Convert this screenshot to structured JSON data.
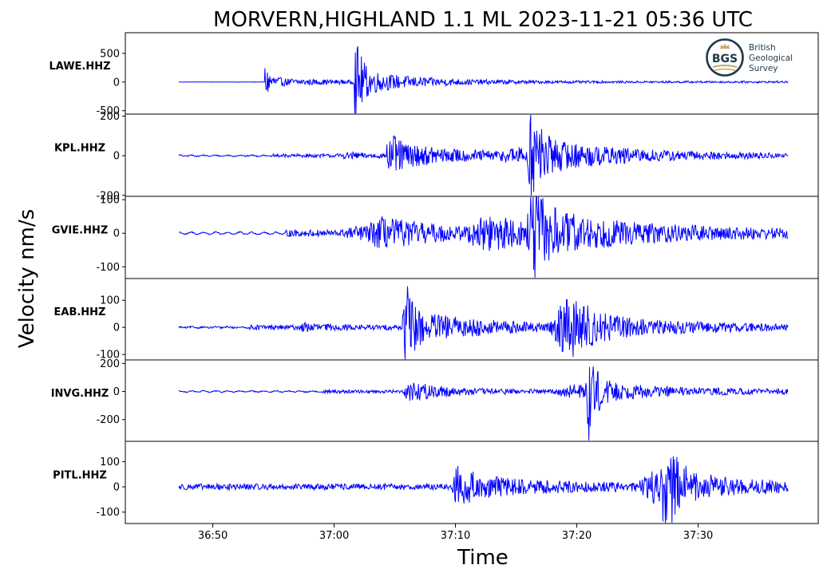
{
  "figure": {
    "title": "MORVERN,HIGHLAND 1.1 ML   2023-11-21 05:36 UTC",
    "ylabel": "Velocity nm/s",
    "xlabel": "Time",
    "time_ticks": [
      "36:50",
      "37:00",
      "37:10",
      "37:20",
      "37:30"
    ]
  },
  "logo": {
    "text_lines": [
      "British",
      "Geological",
      "Survey"
    ],
    "badge": "BGS"
  },
  "colors": {
    "trace": "#0000ff",
    "axes": "#000000",
    "logo_dark": "#1c3a4a",
    "logo_gold": "#c9a86a"
  },
  "chart_data": [
    {
      "type": "line",
      "station": "LAWE.HHZ",
      "ylim": [
        -560,
        860
      ],
      "yticks": [
        500,
        0,
        -500
      ],
      "ytick_labels": [
        "500",
        "0",
        "-500"
      ],
      "noise": 3,
      "bg_noise": 14,
      "bg_start": 9.3,
      "bursts": [
        {
          "t": 9.3,
          "amp": 300,
          "decay": 0.4,
          "rise": 0.05
        },
        {
          "t": 9.6,
          "amp": 60,
          "decay": 6,
          "rise": 0.3
        },
        {
          "t": 16.7,
          "amp": 760,
          "decay": 0.5,
          "rise": 0.05
        },
        {
          "t": 17.0,
          "amp": 180,
          "decay": 5,
          "rise": 0.3
        }
      ]
    },
    {
      "type": "line",
      "station": "KPL.HHZ",
      "ylim": [
        -205,
        210
      ],
      "yticks": [
        200,
        0,
        -200
      ],
      "ytick_labels": [
        "200",
        "0",
        "-200"
      ],
      "noise": 3,
      "bg_noise": 6,
      "bg_start": 10,
      "wave": 2.5,
      "bursts": [
        {
          "t": 16.5,
          "amp": 10,
          "decay": 2,
          "rise": 1.5
        },
        {
          "t": 19.4,
          "amp": 110,
          "decay": 0.6,
          "rise": 0.1
        },
        {
          "t": 19.9,
          "amp": 55,
          "decay": 7,
          "rise": 0.5
        },
        {
          "t": 30.2,
          "amp": 25,
          "decay": 4,
          "rise": 2
        },
        {
          "t": 31.2,
          "amp": 190,
          "decay": 0.7,
          "rise": 0.3
        },
        {
          "t": 31.8,
          "amp": 60,
          "decay": 8,
          "rise": 1
        }
      ]
    },
    {
      "type": "line",
      "station": "GVIE.HHZ",
      "ylim": [
        -135,
        110
      ],
      "yticks": [
        100,
        0,
        -100
      ],
      "ytick_labels": [
        "100",
        "0",
        "-100"
      ],
      "noise": 2,
      "bg_noise": 8,
      "bg_start": 11,
      "wave": 3,
      "bursts": [
        {
          "t": 17.0,
          "amp": 14,
          "decay": 3,
          "rise": 1.5
        },
        {
          "t": 18.8,
          "amp": 35,
          "decay": 6,
          "rise": 1.2
        },
        {
          "t": 28.0,
          "amp": 45,
          "decay": 3,
          "rise": 2.5
        },
        {
          "t": 31.3,
          "amp": 120,
          "decay": 0.8,
          "rise": 0.4
        },
        {
          "t": 31.8,
          "amp": 55,
          "decay": 9,
          "rise": 1.2
        }
      ]
    },
    {
      "type": "line",
      "station": "EAB.HHZ",
      "ylim": [
        -120,
        180
      ],
      "yticks": [
        100,
        0,
        -100
      ],
      "ytick_labels": [
        "100",
        "0",
        "-100"
      ],
      "noise": 3,
      "bg_noise": 6,
      "bg_start": 8,
      "wave": 1.5,
      "bursts": [
        {
          "t": 12.5,
          "amp": 10,
          "decay": 2,
          "rise": 0.5
        },
        {
          "t": 20.7,
          "amp": 170,
          "decay": 0.5,
          "rise": 0.08
        },
        {
          "t": 21.0,
          "amp": 60,
          "decay": 6,
          "rise": 0.4
        },
        {
          "t": 34.2,
          "amp": 95,
          "decay": 2,
          "rise": 1.5
        },
        {
          "t": 34.5,
          "amp": 30,
          "decay": 10,
          "rise": 1
        }
      ]
    },
    {
      "type": "line",
      "station": "INVG.HHZ",
      "ylim": [
        -355,
        225
      ],
      "yticks": [
        200,
        0,
        -200
      ],
      "ytick_labels": [
        "200",
        "0",
        "-200"
      ],
      "noise": 4,
      "bg_noise": 8,
      "bg_start": 14,
      "wave": 4,
      "bursts": [
        {
          "t": 21.0,
          "amp": 60,
          "decay": 2,
          "rise": 0.3
        },
        {
          "t": 21.8,
          "amp": 22,
          "decay": 6,
          "rise": 0.6
        },
        {
          "t": 35.0,
          "amp": 45,
          "decay": 2,
          "rise": 2
        },
        {
          "t": 36.0,
          "amp": 330,
          "decay": 0.5,
          "rise": 0.3
        },
        {
          "t": 36.6,
          "amp": 50,
          "decay": 8,
          "rise": 1
        }
      ]
    },
    {
      "type": "line",
      "station": "PITL.HHZ",
      "ylim": [
        -145,
        180
      ],
      "yticks": [
        100,
        0,
        -100
      ],
      "ytick_labels": [
        "100",
        "0",
        "-100"
      ],
      "noise": 4,
      "bg_noise": 8,
      "bg_start": 1,
      "wave": 3,
      "bursts": [
        {
          "t": 25.0,
          "amp": 65,
          "decay": 1.5,
          "rise": 0.3
        },
        {
          "t": 25.5,
          "amp": 28,
          "decay": 10,
          "rise": 0.6
        },
        {
          "t": 41.5,
          "amp": 55,
          "decay": 2,
          "rise": 1.5
        },
        {
          "t": 42.3,
          "amp": 155,
          "decay": 0.8,
          "rise": 0.4
        },
        {
          "t": 42.8,
          "amp": 42,
          "decay": 7,
          "rise": 1
        }
      ]
    }
  ]
}
